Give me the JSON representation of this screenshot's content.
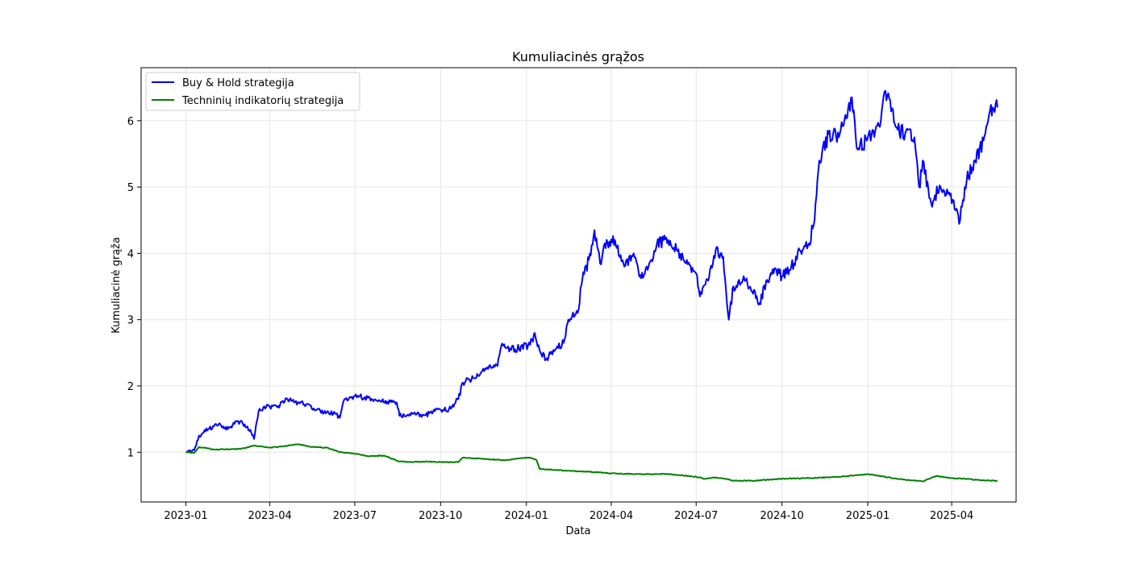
{
  "chart_data": {
    "type": "line",
    "title": "Kumuliacinės grąžos",
    "xlabel": "Data",
    "ylabel": "Kumuliacinė grąža",
    "x_range": [
      "2022-11-14",
      "2025-06-09"
    ],
    "ylim": [
      0.25,
      6.8
    ],
    "x_ticks": [
      "2023-01",
      "2023-04",
      "2023-07",
      "2023-10",
      "2024-01",
      "2024-04",
      "2024-07",
      "2024-10",
      "2025-01",
      "2025-04"
    ],
    "y_ticks": [
      1,
      2,
      3,
      4,
      5,
      6
    ],
    "grid": true,
    "legend_position": "top-left",
    "series": [
      {
        "name": "Buy & Hold strategija",
        "color": "#0000ff",
        "points": [
          [
            "2023-01-01",
            1.0
          ],
          [
            "2023-01-10",
            1.03
          ],
          [
            "2023-01-15",
            1.25
          ],
          [
            "2023-01-25",
            1.35
          ],
          [
            "2023-02-05",
            1.42
          ],
          [
            "2023-02-15",
            1.35
          ],
          [
            "2023-02-25",
            1.47
          ],
          [
            "2023-03-05",
            1.42
          ],
          [
            "2023-03-12",
            1.3
          ],
          [
            "2023-03-15",
            1.2
          ],
          [
            "2023-03-20",
            1.62
          ],
          [
            "2023-03-28",
            1.68
          ],
          [
            "2023-04-10",
            1.7
          ],
          [
            "2023-04-20",
            1.8
          ],
          [
            "2023-05-01",
            1.75
          ],
          [
            "2023-05-10",
            1.72
          ],
          [
            "2023-05-20",
            1.63
          ],
          [
            "2023-06-01",
            1.6
          ],
          [
            "2023-06-10",
            1.58
          ],
          [
            "2023-06-15",
            1.52
          ],
          [
            "2023-06-20",
            1.8
          ],
          [
            "2023-07-01",
            1.85
          ],
          [
            "2023-07-15",
            1.82
          ],
          [
            "2023-07-25",
            1.78
          ],
          [
            "2023-08-05",
            1.76
          ],
          [
            "2023-08-15",
            1.75
          ],
          [
            "2023-08-18",
            1.55
          ],
          [
            "2023-09-01",
            1.58
          ],
          [
            "2023-09-15",
            1.56
          ],
          [
            "2023-09-25",
            1.62
          ],
          [
            "2023-10-10",
            1.65
          ],
          [
            "2023-10-20",
            1.8
          ],
          [
            "2023-10-25",
            2.05
          ],
          [
            "2023-11-05",
            2.12
          ],
          [
            "2023-11-20",
            2.28
          ],
          [
            "2023-12-01",
            2.3
          ],
          [
            "2023-12-05",
            2.6
          ],
          [
            "2023-12-20",
            2.55
          ],
          [
            "2024-01-05",
            2.62
          ],
          [
            "2024-01-10",
            2.8
          ],
          [
            "2024-01-15",
            2.55
          ],
          [
            "2024-01-22",
            2.4
          ],
          [
            "2024-02-01",
            2.55
          ],
          [
            "2024-02-10",
            2.65
          ],
          [
            "2024-02-15",
            3.0
          ],
          [
            "2024-02-25",
            3.1
          ],
          [
            "2024-03-01",
            3.6
          ],
          [
            "2024-03-08",
            3.9
          ],
          [
            "2024-03-14",
            4.35
          ],
          [
            "2024-03-20",
            3.85
          ],
          [
            "2024-03-25",
            4.15
          ],
          [
            "2024-04-05",
            4.2
          ],
          [
            "2024-04-15",
            3.8
          ],
          [
            "2024-04-25",
            4.0
          ],
          [
            "2024-05-01",
            3.65
          ],
          [
            "2024-05-10",
            3.75
          ],
          [
            "2024-05-20",
            4.15
          ],
          [
            "2024-06-01",
            4.2
          ],
          [
            "2024-06-10",
            4.05
          ],
          [
            "2024-06-20",
            3.85
          ],
          [
            "2024-07-01",
            3.7
          ],
          [
            "2024-07-05",
            3.35
          ],
          [
            "2024-07-15",
            3.65
          ],
          [
            "2024-07-22",
            4.05
          ],
          [
            "2024-07-30",
            3.95
          ],
          [
            "2024-08-05",
            3.0
          ],
          [
            "2024-08-10",
            3.5
          ],
          [
            "2024-08-20",
            3.6
          ],
          [
            "2024-09-01",
            3.45
          ],
          [
            "2024-09-07",
            3.25
          ],
          [
            "2024-09-15",
            3.6
          ],
          [
            "2024-09-25",
            3.75
          ],
          [
            "2024-10-01",
            3.65
          ],
          [
            "2024-10-10",
            3.75
          ],
          [
            "2024-10-20",
            4.05
          ],
          [
            "2024-10-30",
            4.15
          ],
          [
            "2024-11-05",
            4.5
          ],
          [
            "2024-11-10",
            5.4
          ],
          [
            "2024-11-20",
            5.8
          ],
          [
            "2024-12-01",
            5.75
          ],
          [
            "2024-12-10",
            6.05
          ],
          [
            "2024-12-15",
            6.35
          ],
          [
            "2024-12-20",
            5.6
          ],
          [
            "2024-12-31",
            5.7
          ],
          [
            "2025-01-07",
            5.85
          ],
          [
            "2025-01-15",
            6.0
          ],
          [
            "2025-01-20",
            6.45
          ],
          [
            "2025-02-01",
            5.9
          ],
          [
            "2025-02-10",
            5.8
          ],
          [
            "2025-02-20",
            5.75
          ],
          [
            "2025-02-25",
            5.0
          ],
          [
            "2025-03-01",
            5.4
          ],
          [
            "2025-03-10",
            4.75
          ],
          [
            "2025-03-20",
            5.0
          ],
          [
            "2025-03-28",
            4.9
          ],
          [
            "2025-04-05",
            4.65
          ],
          [
            "2025-04-10",
            4.5
          ],
          [
            "2025-04-15",
            5.0
          ],
          [
            "2025-04-25",
            5.4
          ],
          [
            "2025-05-05",
            5.7
          ],
          [
            "2025-05-10",
            6.0
          ],
          [
            "2025-05-15",
            6.2
          ],
          [
            "2025-05-20",
            6.2
          ]
        ]
      },
      {
        "name": "Techninių indikatorių strategija",
        "color": "#008000",
        "points": [
          [
            "2023-01-01",
            1.0
          ],
          [
            "2023-01-10",
            0.99
          ],
          [
            "2023-01-15",
            1.08
          ],
          [
            "2023-02-01",
            1.04
          ],
          [
            "2023-03-01",
            1.05
          ],
          [
            "2023-03-15",
            1.1
          ],
          [
            "2023-04-01",
            1.07
          ],
          [
            "2023-04-15",
            1.09
          ],
          [
            "2023-05-01",
            1.12
          ],
          [
            "2023-05-15",
            1.08
          ],
          [
            "2023-06-01",
            1.07
          ],
          [
            "2023-06-15",
            1.0
          ],
          [
            "2023-07-01",
            0.98
          ],
          [
            "2023-07-15",
            0.94
          ],
          [
            "2023-08-01",
            0.95
          ],
          [
            "2023-08-18",
            0.86
          ],
          [
            "2023-09-01",
            0.85
          ],
          [
            "2023-09-15",
            0.86
          ],
          [
            "2023-10-01",
            0.85
          ],
          [
            "2023-10-20",
            0.85
          ],
          [
            "2023-10-25",
            0.92
          ],
          [
            "2023-11-15",
            0.9
          ],
          [
            "2023-12-10",
            0.88
          ],
          [
            "2023-12-25",
            0.91
          ],
          [
            "2024-01-05",
            0.92
          ],
          [
            "2024-01-12",
            0.88
          ],
          [
            "2024-01-15",
            0.75
          ],
          [
            "2024-02-15",
            0.72
          ],
          [
            "2024-03-15",
            0.7
          ],
          [
            "2024-04-01",
            0.68
          ],
          [
            "2024-05-01",
            0.67
          ],
          [
            "2024-06-01",
            0.67
          ],
          [
            "2024-07-01",
            0.63
          ],
          [
            "2024-07-10",
            0.6
          ],
          [
            "2024-07-20",
            0.62
          ],
          [
            "2024-08-01",
            0.6
          ],
          [
            "2024-08-10",
            0.57
          ],
          [
            "2024-09-01",
            0.57
          ],
          [
            "2024-10-01",
            0.6
          ],
          [
            "2024-11-01",
            0.61
          ],
          [
            "2024-12-01",
            0.63
          ],
          [
            "2025-01-01",
            0.67
          ],
          [
            "2025-01-15",
            0.64
          ],
          [
            "2025-02-01",
            0.6
          ],
          [
            "2025-02-15",
            0.58
          ],
          [
            "2025-03-01",
            0.56
          ],
          [
            "2025-03-15",
            0.64
          ],
          [
            "2025-04-01",
            0.61
          ],
          [
            "2025-04-15",
            0.6
          ],
          [
            "2025-05-01",
            0.58
          ],
          [
            "2025-05-20",
            0.57
          ]
        ]
      }
    ]
  }
}
